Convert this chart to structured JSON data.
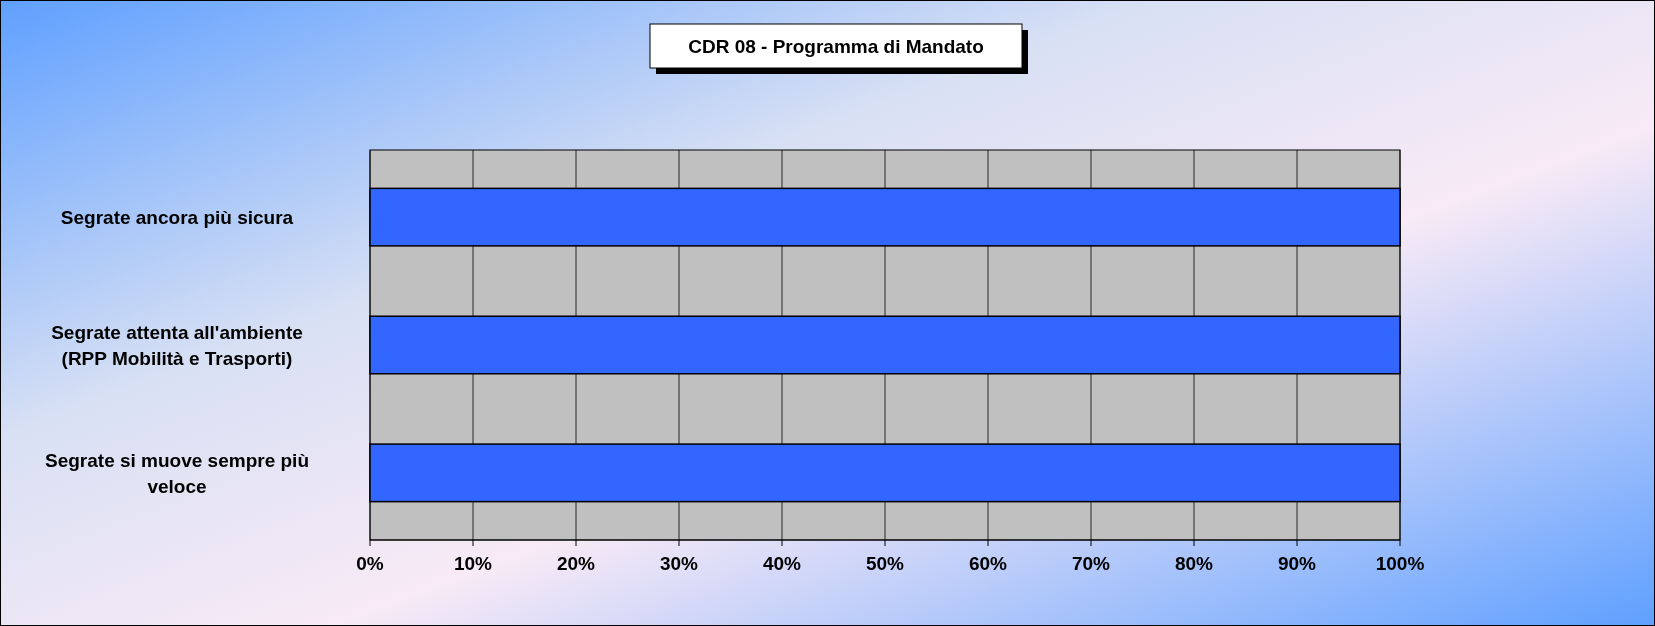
{
  "chart_data": {
    "type": "bar",
    "orientation": "horizontal",
    "title": "CDR 08 - Programma di Mandato",
    "categories": [
      "Segrate ancora più sicura",
      "Segrate attenta all'ambiente (RPP Mobilità e Trasporti)",
      "Segrate si muove sempre più veloce"
    ],
    "values": [
      100,
      100,
      100
    ],
    "color": "#3366ff",
    "xlim": [
      0,
      100
    ],
    "xticks": [
      {
        "value": 0,
        "label": "0%"
      },
      {
        "value": 10,
        "label": "10%"
      },
      {
        "value": 20,
        "label": "20%"
      },
      {
        "value": 30,
        "label": "30%"
      },
      {
        "value": 40,
        "label": "40%"
      },
      {
        "value": 50,
        "label": "50%"
      },
      {
        "value": 60,
        "label": "60%"
      },
      {
        "value": 70,
        "label": "70%"
      },
      {
        "value": 80,
        "label": "80%"
      },
      {
        "value": 90,
        "label": "90%"
      },
      {
        "value": 100,
        "label": "100%"
      }
    ],
    "grid": "x"
  }
}
